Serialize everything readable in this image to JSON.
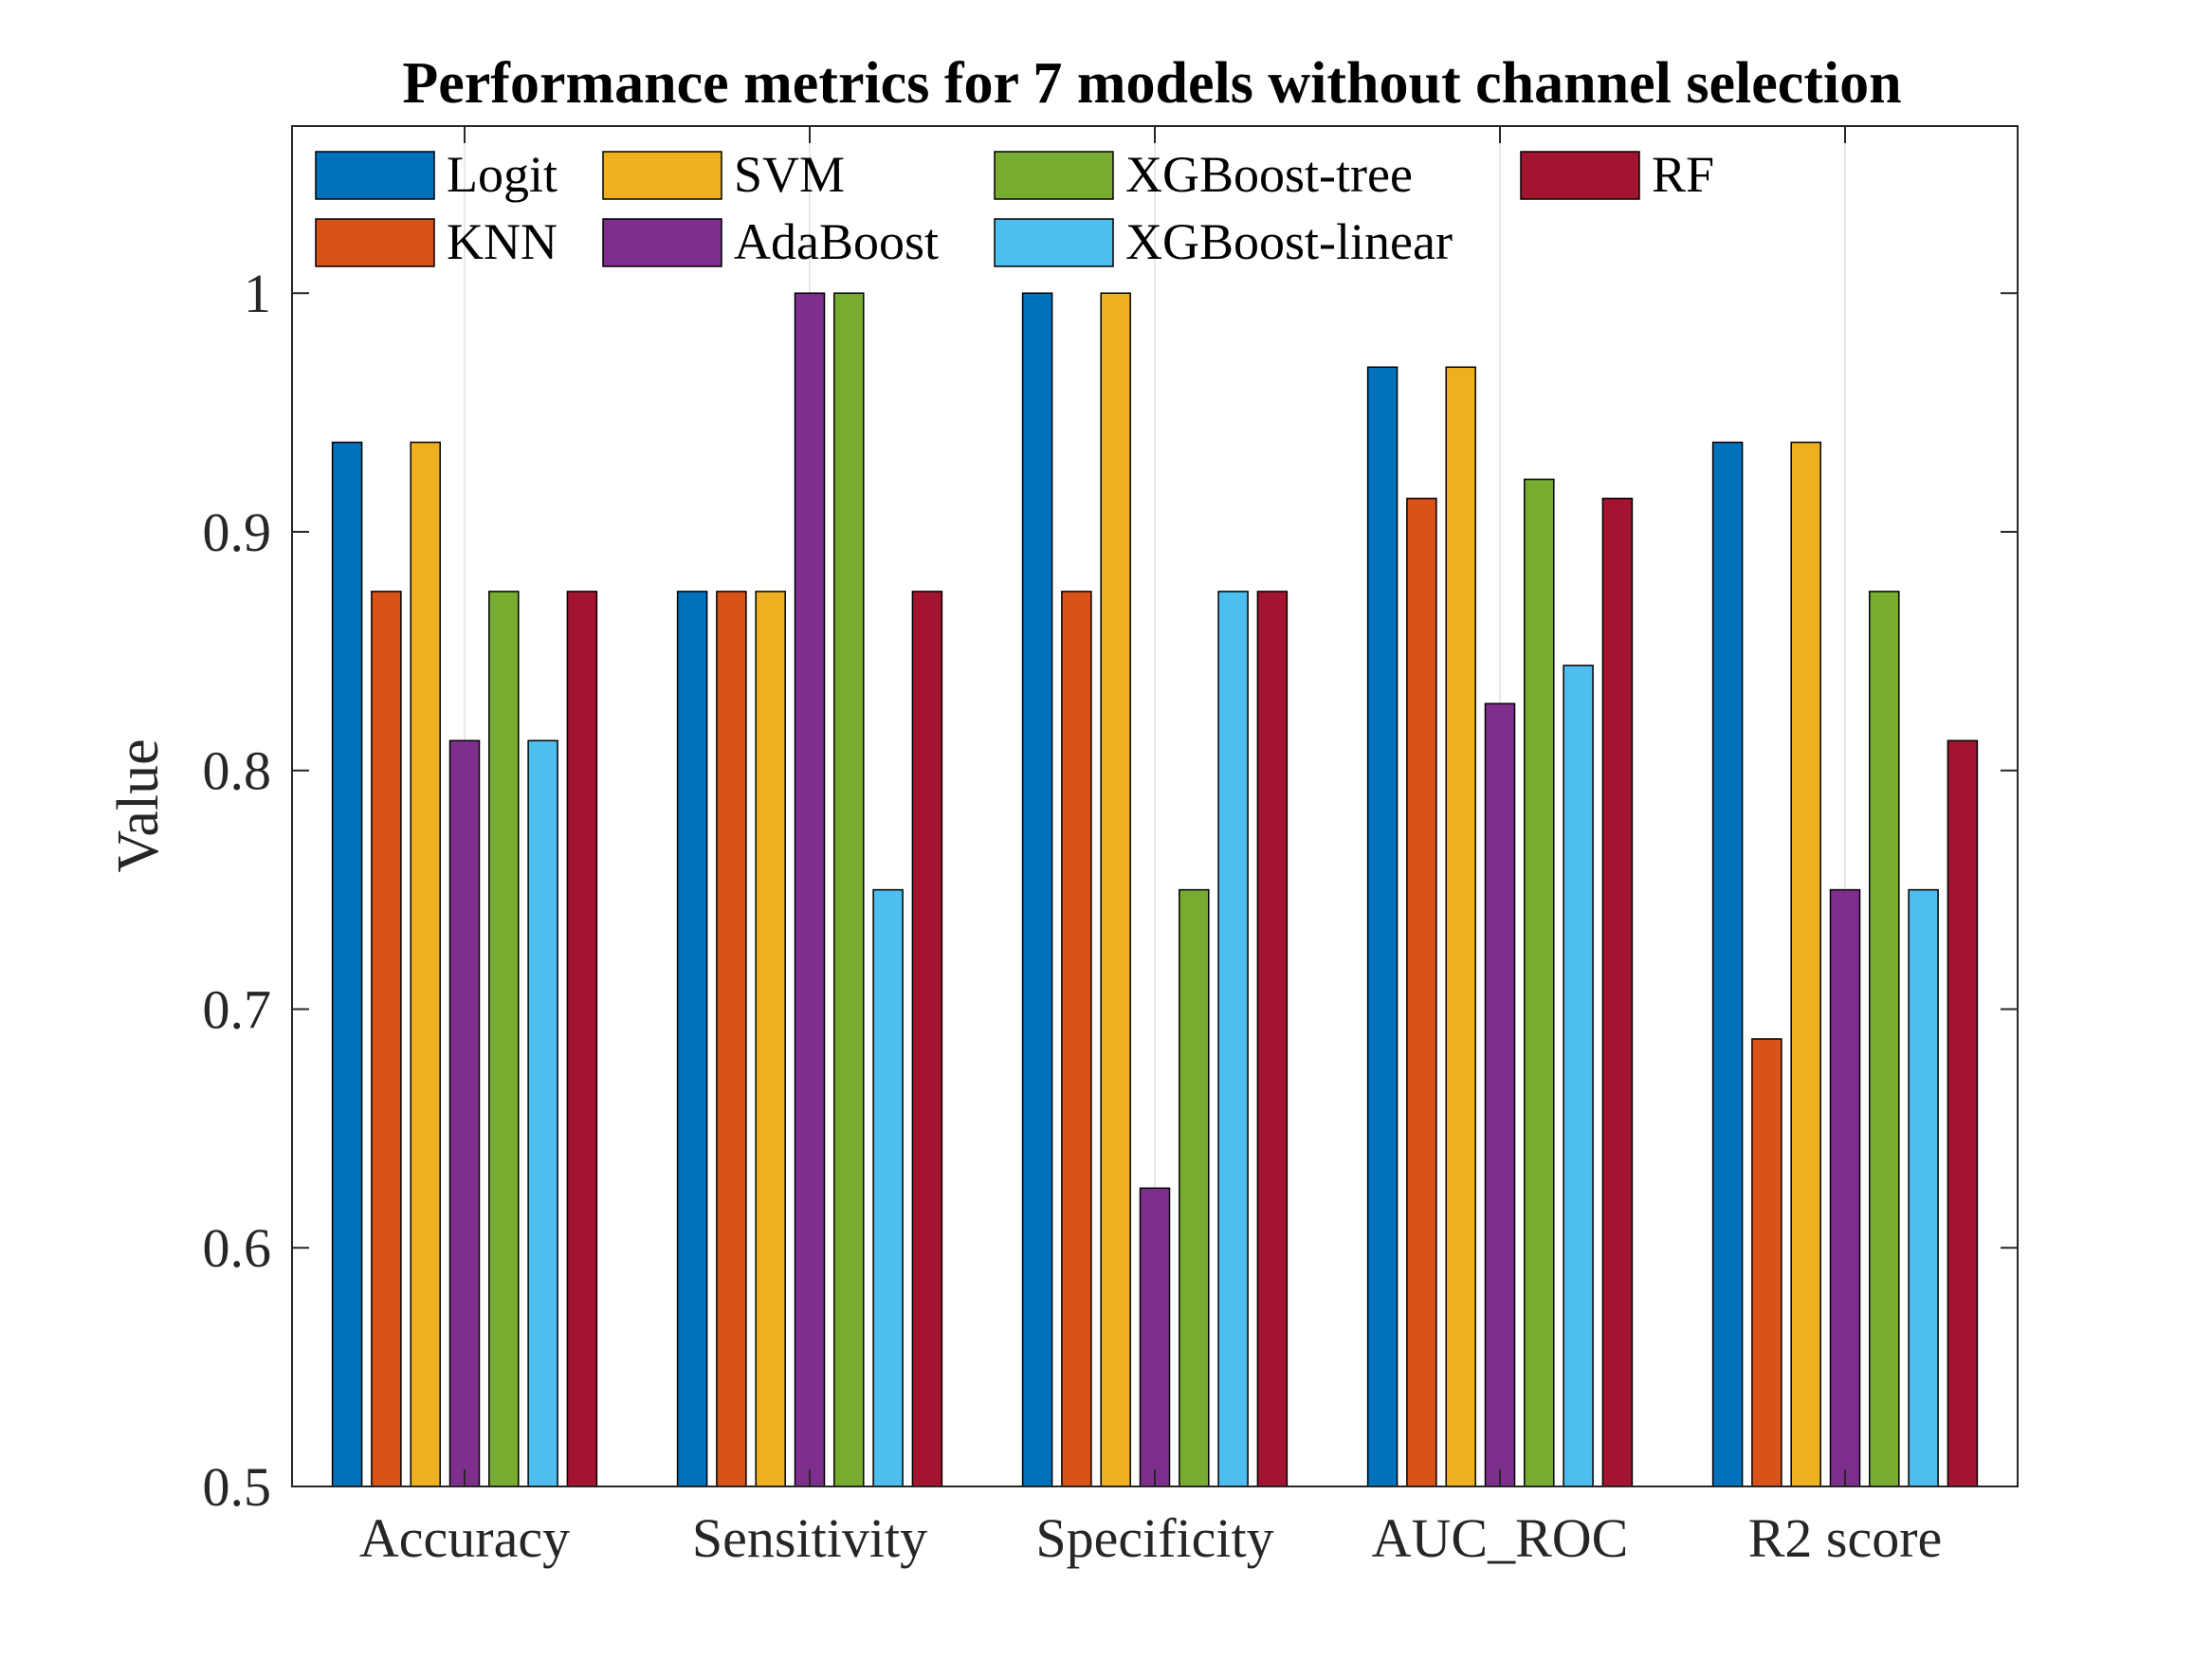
{
  "chart_data": {
    "type": "bar",
    "title": "Performance metrics for 7 models without channel selection",
    "xlabel": "",
    "ylabel": "Value",
    "ylim": [
      0.5,
      1.07
    ],
    "yticks": [
      0.5,
      0.6,
      0.7,
      0.8,
      0.9,
      1
    ],
    "ytick_labels": [
      "0.5",
      "0.6",
      "0.7",
      "0.8",
      "0.9",
      "1"
    ],
    "categories": [
      "Accuracy",
      "Sensitivity",
      "Specificity",
      "AUC_ROC",
      "R2 score"
    ],
    "grid": "vertical at category centers",
    "legend_position": "top, inside",
    "series": [
      {
        "name": "Logit",
        "color": "#0072BD",
        "values": [
          0.9375,
          0.875,
          1.0,
          0.969,
          0.9375
        ]
      },
      {
        "name": "KNN",
        "color": "#D95319",
        "values": [
          0.875,
          0.875,
          0.875,
          0.914,
          0.6875
        ]
      },
      {
        "name": "SVM",
        "color": "#EDB120",
        "values": [
          0.9375,
          0.875,
          1.0,
          0.969,
          0.9375
        ]
      },
      {
        "name": "AdaBoost",
        "color": "#7E2F8E",
        "values": [
          0.8125,
          1.0,
          0.625,
          0.828,
          0.75
        ]
      },
      {
        "name": "XGBoost-tree",
        "color": "#77AC30",
        "values": [
          0.875,
          1.0,
          0.75,
          0.922,
          0.875
        ]
      },
      {
        "name": "XGBoost-linear",
        "color": "#4DBEEE",
        "values": [
          0.8125,
          0.75,
          0.875,
          0.844,
          0.75
        ]
      },
      {
        "name": "RF",
        "color": "#A2142F",
        "values": [
          0.875,
          0.875,
          0.875,
          0.914,
          0.8125
        ]
      }
    ]
  }
}
